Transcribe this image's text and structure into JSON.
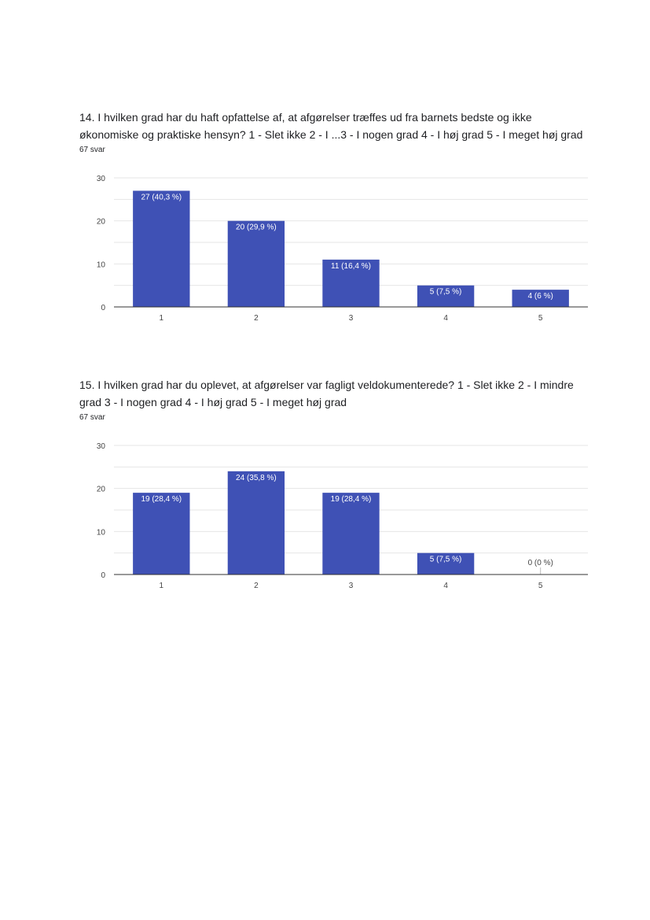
{
  "questions": [
    {
      "title": "14. I hvilken grad har du haft opfattelse af, at afgørelser træffes ud fra barnets bedste og ikke økonomiske og praktiske hensyn?  1 - Slet ikke  2 - I ...3 - I nogen grad  4 - I høj grad  5 - I meget høj grad",
      "response_count": "67 svar"
    },
    {
      "title": "15. I hvilken grad har du oplevet, at afgørelser var fagligt veldokumenterede?  1 - Slet ikke  2 - I mindre grad  3 - I nogen grad  4 - I høj grad  5 - I meget høj grad",
      "response_count": "67 svar"
    }
  ],
  "colors": {
    "bar": "#3f51b5",
    "grid": "#e6e6e6",
    "axis": "#333333"
  },
  "chart_data": [
    {
      "type": "bar",
      "categories": [
        "1",
        "2",
        "3",
        "4",
        "5"
      ],
      "values": [
        27,
        20,
        11,
        5,
        4
      ],
      "data_labels": [
        "27 (40,3 %)",
        "20 (29,9 %)",
        "11 (16,4 %)",
        "5 (7,5 %)",
        "4 (6 %)"
      ],
      "ylim": [
        0,
        30
      ],
      "y_ticks": [
        0,
        10,
        20,
        30
      ],
      "grid": true
    },
    {
      "type": "bar",
      "categories": [
        "1",
        "2",
        "3",
        "4",
        "5"
      ],
      "values": [
        19,
        24,
        19,
        5,
        0
      ],
      "data_labels": [
        "19 (28,4 %)",
        "24 (35,8 %)",
        "19 (28,4 %)",
        "5 (7,5 %)",
        "0 (0 %)"
      ],
      "ylim": [
        0,
        30
      ],
      "y_ticks": [
        0,
        10,
        20,
        30
      ],
      "grid": true
    }
  ]
}
